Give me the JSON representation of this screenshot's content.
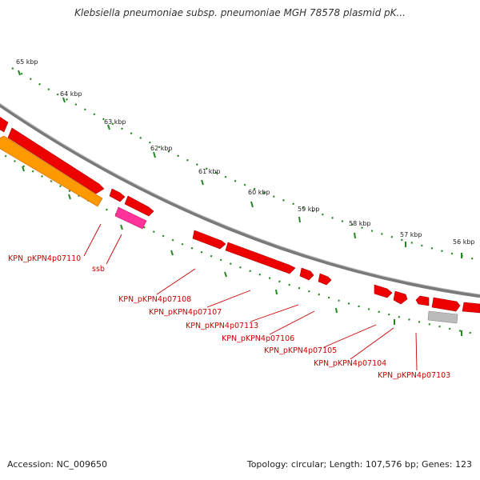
{
  "title": "Klebsiella pneumoniae subsp. pneumoniae MGH 78578 plasmid pK...",
  "ruler": {
    "ticks": [
      "65 kbp",
      "64 kbp",
      "63 kbp",
      "62 kbp",
      "61 kbp",
      "60 kbp",
      "59 kbp",
      "58 kbp",
      "57 kbp",
      "56 kbp"
    ]
  },
  "labels": {
    "l1": "KPN_pKPN4p07110",
    "l2": "ssb",
    "l3": "KPN_pKPN4p07108",
    "l4": "KPN_pKPN4p07107",
    "l5": "KPN_pKPN4p07113",
    "l6": "KPN_pKPN4p07106",
    "l7": "KPN_pKPN4p07105",
    "l8": "KPN_pKPN4p07104",
    "l9": "KPN_pKPN4p07103"
  },
  "footer": {
    "accession": "Accession: NC_009650",
    "info": "Topology: circular; Length: 107,576 bp; Genes: 123"
  },
  "colors": {
    "gene": "#ee0000",
    "orange_gene": "#ff9900",
    "ssb": "#ff3399",
    "grey_gene": "#bbbbbb",
    "backbone": "#808080",
    "ruler": "#228822",
    "label": "#cc0000"
  }
}
